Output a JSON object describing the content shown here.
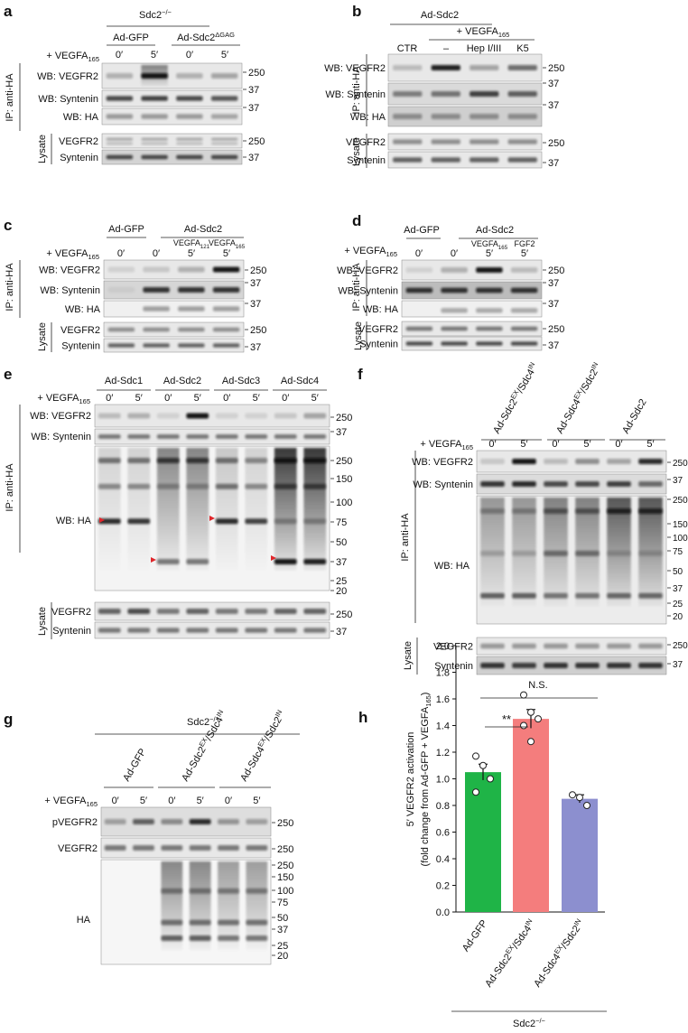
{
  "panels": {
    "a": {
      "letter": "a",
      "group": [
        "Sdc2",
        "−/−"
      ],
      "constructs": [
        "Ad-GFP",
        [
          "Ad-Sdc2",
          "ΔGAG"
        ]
      ],
      "treatment": [
        "+ VEGFA",
        "165"
      ],
      "times": [
        "0′",
        "5′",
        "0′",
        "5′"
      ],
      "rows": [
        "WB: VEGFR2",
        "WB: Syntenin",
        "WB: HA"
      ],
      "mw": [
        250,
        37,
        37
      ],
      "ip": "IP: anti-HA",
      "lysate": "Lysate",
      "lysate_rows": [
        "VEGFR2",
        "Syntenin"
      ],
      "lysate_mw": [
        250,
        37
      ]
    },
    "b": {
      "letter": "b",
      "construct": "Ad-Sdc2",
      "treatment": [
        "+ VEGFA",
        "165"
      ],
      "conditions": [
        "CTR",
        "–",
        "Hep I/III",
        "K5"
      ],
      "rows": [
        "WB: VEGFR2",
        "WB: Syntenin",
        "WB: HA"
      ],
      "mw": [
        250,
        37,
        37
      ],
      "ip": "IP: anti-HA",
      "lysate": "Lysate",
      "lysate_rows": [
        "VEGFR2",
        "Syntenin"
      ],
      "lysate_mw": [
        250,
        37
      ]
    },
    "c": {
      "letter": "c",
      "constructs": [
        "Ad-GFP",
        "Ad-Sdc2"
      ],
      "treatment": [
        "+ VEGFA",
        "165"
      ],
      "times": [
        "0′",
        "0′",
        "5′",
        "5′"
      ],
      "ligands": [
        [
          "VEGFA",
          "121"
        ],
        [
          "VEGFA",
          "165"
        ]
      ],
      "rows": [
        "WB: VEGFR2",
        "WB: Syntenin",
        "WB: HA"
      ],
      "mw": [
        250,
        37,
        37
      ],
      "ip": "IP: anti-HA",
      "lysate": "Lysate",
      "lysate_rows": [
        "VEGFR2",
        "Syntenin"
      ],
      "lysate_mw": [
        250,
        37
      ]
    },
    "d": {
      "letter": "d",
      "constructs": [
        "Ad-GFP",
        "Ad-Sdc2"
      ],
      "treatment": [
        "+ VEGFA",
        "165"
      ],
      "times": [
        "0′",
        "0′",
        "5′",
        "5′"
      ],
      "ligands": [
        [
          "VEGFA",
          "165"
        ],
        "FGF2"
      ],
      "rows": [
        "WB: VEGFR2",
        "WB: Syntenin",
        "WB: HA"
      ],
      "mw": [
        250,
        37,
        37
      ],
      "ip": "IP: anti-HA",
      "lysate": "Lysate",
      "lysate_rows": [
        "VEGFR2",
        "Syntenin"
      ],
      "lysate_mw": [
        250,
        37
      ]
    },
    "e": {
      "letter": "e",
      "constructs": [
        "Ad-Sdc1",
        "Ad-Sdc2",
        "Ad-Sdc3",
        "Ad-Sdc4"
      ],
      "treatment": [
        "+ VEGFA",
        "165"
      ],
      "times": [
        "0′",
        "5′",
        "0′",
        "5′",
        "0′",
        "5′",
        "0′",
        "5′"
      ],
      "rows": [
        "WB: VEGFR2",
        "WB: Syntenin",
        "WB: HA"
      ],
      "mw": [
        250,
        37
      ],
      "ha_mw": [
        250,
        150,
        100,
        75,
        50,
        37,
        25,
        20
      ],
      "ip": "IP: anti-HA",
      "lysate": "Lysate",
      "lysate_rows": [
        "VEGFR2",
        "Syntenin"
      ],
      "lysate_mw": [
        250,
        37
      ]
    },
    "f": {
      "letter": "f",
      "constructs": [
        [
          "Ad-Sdc2",
          "EX",
          "/Sdc4",
          "IN"
        ],
        [
          "Ad-Sdc4",
          "EX",
          "/Sdc2",
          "IN"
        ],
        "Ad-Sdc2"
      ],
      "treatment": [
        "+ VEGFA",
        "165"
      ],
      "times": [
        "0′",
        "5′",
        "0′",
        "5′",
        "0′",
        "5′"
      ],
      "rows": [
        "WB: VEGFR2",
        "WB: Syntenin",
        "WB: HA"
      ],
      "mw": [
        250,
        37
      ],
      "ha_mw": [
        250,
        150,
        100,
        75,
        50,
        37,
        25,
        20
      ],
      "ip": "IP: anti-HA",
      "lysate": "Lysate",
      "lysate_rows": [
        "VEGFR2",
        "Syntenin"
      ],
      "lysate_mw": [
        250,
        37
      ]
    },
    "g": {
      "letter": "g",
      "group": [
        "Sdc2",
        "−/−"
      ],
      "constructs": [
        "Ad-GFP",
        [
          "Ad-Sdc2",
          "EX",
          "/Sdc4",
          "IN"
        ],
        [
          "Ad-Sdc4",
          "EX",
          "/Sdc2",
          "IN"
        ]
      ],
      "treatment": [
        "+ VEGFA",
        "165"
      ],
      "times": [
        "0′",
        "5′",
        "0′",
        "5′",
        "0′",
        "5′"
      ],
      "rows": [
        "pVEGFR2",
        "VEGFR2",
        "HA"
      ],
      "mw": [
        250,
        250
      ],
      "ha_mw": [
        250,
        150,
        100,
        75,
        50,
        37,
        25,
        20
      ]
    }
  },
  "chart_data": {
    "type": "bar",
    "letter": "h",
    "ylabel": [
      "5′ VEGFR2 activation"
    ],
    "ylabel2": [
      "(fold change from Ad-GFP + VEGFA",
      "165",
      ")"
    ],
    "categories": [
      "Ad-GFP",
      [
        "Ad-Sdc2",
        "EX",
        "/Sdc4",
        "IN"
      ],
      [
        "Ad-Sdc4",
        "EX",
        "/Sdc2",
        "IN"
      ]
    ],
    "values": [
      1.05,
      1.45,
      0.85
    ],
    "errors": [
      0.06,
      0.07,
      0.03
    ],
    "points": [
      [
        1.17,
        1.1,
        1.0,
        0.9
      ],
      [
        1.63,
        1.5,
        1.45,
        1.4,
        1.28
      ],
      [
        0.88,
        0.86,
        0.8
      ]
    ],
    "colors": [
      "#1fb447",
      "#f47d7d",
      "#8c8fcf"
    ],
    "ylim": [
      0,
      2.0
    ],
    "yticks": [
      {
        "value": 0,
        "label": "0.0"
      },
      {
        "value": 0.2,
        "label": "0.2"
      },
      {
        "value": 0.4,
        "label": "0.4"
      },
      {
        "value": 0.6,
        "label": "0.6"
      },
      {
        "value": 0.8,
        "label": "0.8"
      },
      {
        "value": 1.0,
        "label": "1.0"
      },
      {
        "value": 1.2,
        "label": "1.2"
      },
      {
        "value": 1.4,
        "label": "1.4"
      },
      {
        "value": 1.6,
        "label": "1.6"
      },
      {
        "value": 1.8,
        "label": "1.8"
      },
      {
        "value": 2.0,
        "label": "2.0"
      }
    ],
    "annotations": [
      "**",
      "N.S."
    ],
    "group": [
      "Sdc2",
      "−/−"
    ]
  }
}
